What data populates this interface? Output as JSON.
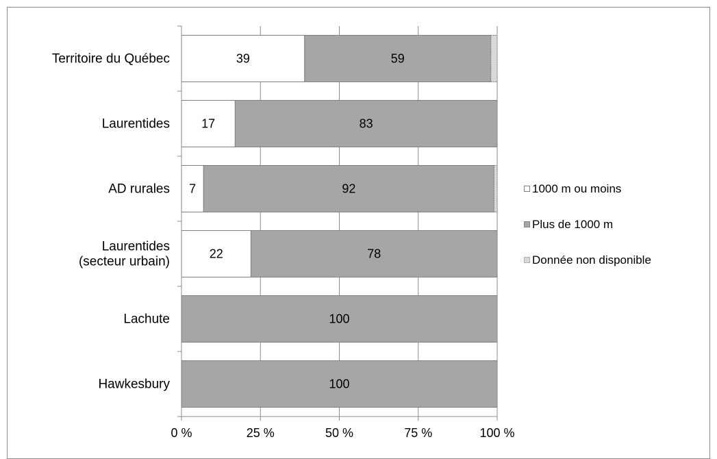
{
  "chart_data": {
    "type": "bar",
    "orientation": "horizontal",
    "stacked": "percent",
    "categories": [
      "Territoire du Québec",
      "Laurentides",
      "AD rurales",
      "Laurentides\n(secteur urbain)",
      "Lachute",
      "Hawkesbury"
    ],
    "series": [
      {
        "name": "1000 m ou moins",
        "values": [
          39,
          17,
          7,
          22,
          0,
          0
        ],
        "color": "#ffffff"
      },
      {
        "name": "Plus de 1000 m",
        "values": [
          59,
          83,
          92,
          78,
          100,
          100
        ],
        "color": "#a6a6a6"
      },
      {
        "name": "Donnée non disponible",
        "values": [
          2,
          0,
          1,
          0,
          0,
          0
        ],
        "color": "#d9d9d9"
      }
    ],
    "data_labels": [
      [
        "39",
        "17",
        "7",
        "22",
        "",
        ""
      ],
      [
        "59",
        "83",
        "92",
        "78",
        "100",
        "100"
      ],
      [
        "",
        "",
        "",
        "",
        "",
        ""
      ]
    ],
    "x_ticks": [
      "0 %",
      "25 %",
      "50 %",
      "75 %",
      "100 %"
    ],
    "xlim": [
      0,
      100
    ],
    "grid": true,
    "legend_position": "right",
    "title": "",
    "xlabel": "",
    "ylabel": ""
  }
}
